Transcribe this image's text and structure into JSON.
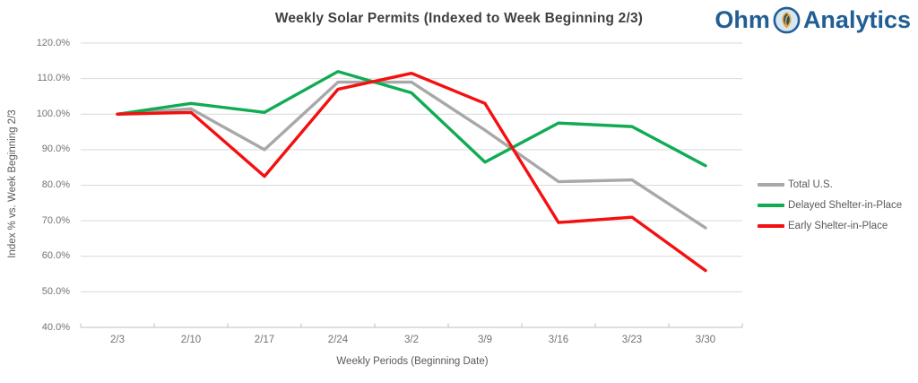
{
  "title": "Weekly Solar Permits (Indexed to Week Beginning 2/3)",
  "logo": {
    "part1": "Ohm",
    "part2": "Analytics",
    "icon": "leaf-circle-icon",
    "text_color": "#215e93",
    "icon_ring_color": "#215e93",
    "icon_fill_color": "#d6e7f4",
    "icon_leaf_color": "#efa32f"
  },
  "chart_data": {
    "type": "line",
    "categories": [
      "2/3",
      "2/10",
      "2/17",
      "2/24",
      "3/2",
      "3/9",
      "3/16",
      "3/23",
      "3/30"
    ],
    "series": [
      {
        "name": "Total U.S.",
        "color": "#a8a8a8",
        "values": [
          100.0,
          101.5,
          90.0,
          109.0,
          109.0,
          95.5,
          81.0,
          81.5,
          68.0
        ]
      },
      {
        "name": "Delayed Shelter-in-Place",
        "color": "#10ab53",
        "values": [
          100.0,
          103.0,
          100.5,
          112.0,
          106.0,
          86.5,
          97.5,
          96.5,
          85.5
        ]
      },
      {
        "name": "Early Shelter-in-Place",
        "color": "#f40f10",
        "values": [
          100.0,
          100.5,
          82.5,
          107.0,
          111.5,
          103.0,
          69.5,
          71.0,
          56.0
        ]
      }
    ],
    "title": "Weekly Solar Permits (Indexed to Week Beginning 2/3)",
    "xlabel": "Weekly Periods (Beginning Date)",
    "ylabel": "Index % vs. Week Beginning 2/3",
    "ylim": [
      40,
      120
    ],
    "ytick_step": 10,
    "ytick_suffix": "%",
    "ytick_decimals": 1,
    "grid": true,
    "grid_color": "#d9d9d9",
    "axis_line_color": "#bfbfbf",
    "legend_position": "right"
  }
}
